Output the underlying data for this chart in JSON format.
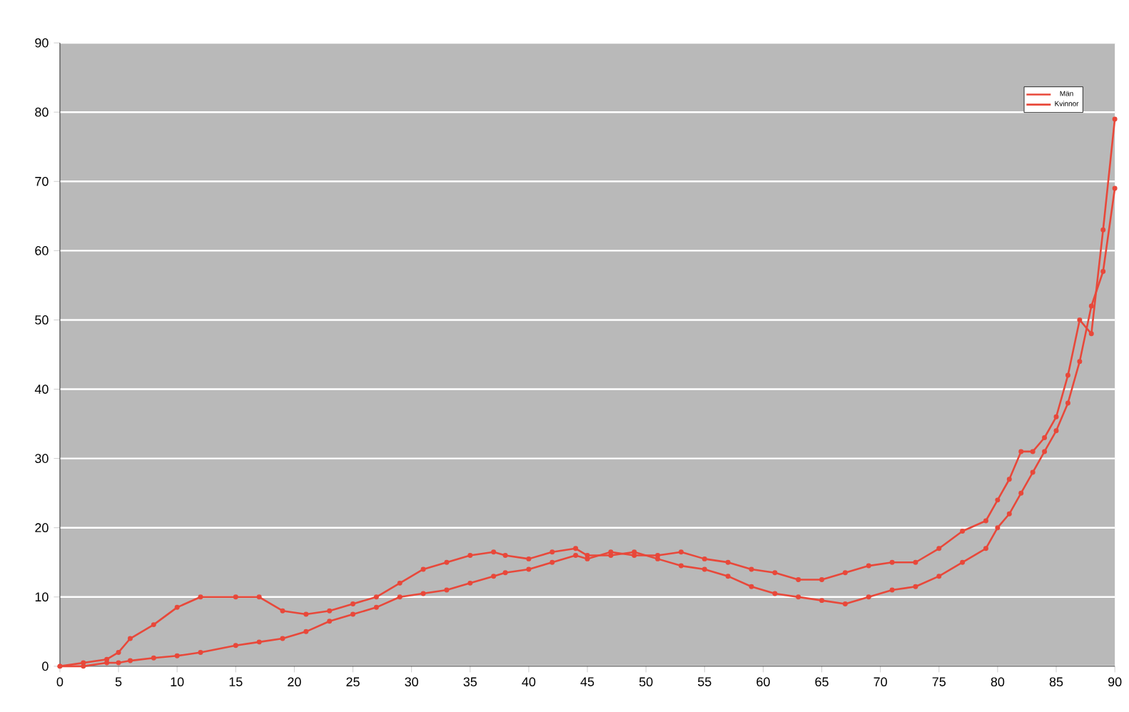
{
  "chart_data": {
    "type": "line",
    "x": [
      0,
      2,
      4,
      5,
      6,
      8,
      10,
      12,
      15,
      17,
      19,
      21,
      23,
      25,
      27,
      29,
      31,
      33,
      35,
      37,
      38,
      40,
      42,
      44,
      45,
      47,
      49,
      51,
      53,
      55,
      57,
      59,
      61,
      63,
      65,
      67,
      69,
      71,
      73,
      75,
      77,
      79,
      80,
      81,
      82,
      83,
      84,
      85,
      86,
      87,
      88,
      89,
      90
    ],
    "series": [
      {
        "name": "Män",
        "color": "#e8483a",
        "values": [
          0,
          0.5,
          1,
          2,
          4,
          6,
          8.5,
          10,
          10,
          10,
          8,
          7.5,
          8,
          9,
          10,
          12,
          14,
          15,
          16,
          16.5,
          16,
          15.5,
          16.5,
          17,
          16,
          16,
          16.5,
          15.5,
          14.5,
          14,
          13,
          11.5,
          10.5,
          10,
          9.5,
          9,
          10,
          11,
          11.5,
          13,
          15,
          17,
          20,
          22,
          25,
          28,
          31,
          34,
          38,
          44,
          52,
          57,
          69
        ]
      },
      {
        "name": "Kvinnor",
        "color": "#e8483a",
        "values": [
          0,
          0,
          0.5,
          0.5,
          0.8,
          1.2,
          1.5,
          2,
          3,
          3.5,
          4,
          5,
          6.5,
          7.5,
          8.5,
          10,
          10.5,
          11,
          12,
          13,
          13.5,
          14,
          15,
          16,
          15.5,
          16.5,
          16,
          16,
          16.5,
          15.5,
          15,
          14,
          13.5,
          12.5,
          12.5,
          13.5,
          14.5,
          15,
          15,
          17,
          19.5,
          21,
          24,
          27,
          31,
          31,
          33,
          36,
          42,
          50,
          48,
          63,
          79
        ]
      }
    ],
    "xlim": [
      0,
      90
    ],
    "xticks": [
      0,
      5,
      10,
      15,
      20,
      25,
      30,
      35,
      40,
      45,
      50,
      55,
      60,
      65,
      70,
      75,
      80,
      85,
      90
    ],
    "ylim": [
      0,
      90
    ],
    "yticks": [
      0,
      10,
      20,
      30,
      40,
      50,
      60,
      70,
      80,
      90
    ],
    "grid": "y",
    "legend": "top right",
    "marker": "circle",
    "line_style": "solid"
  }
}
